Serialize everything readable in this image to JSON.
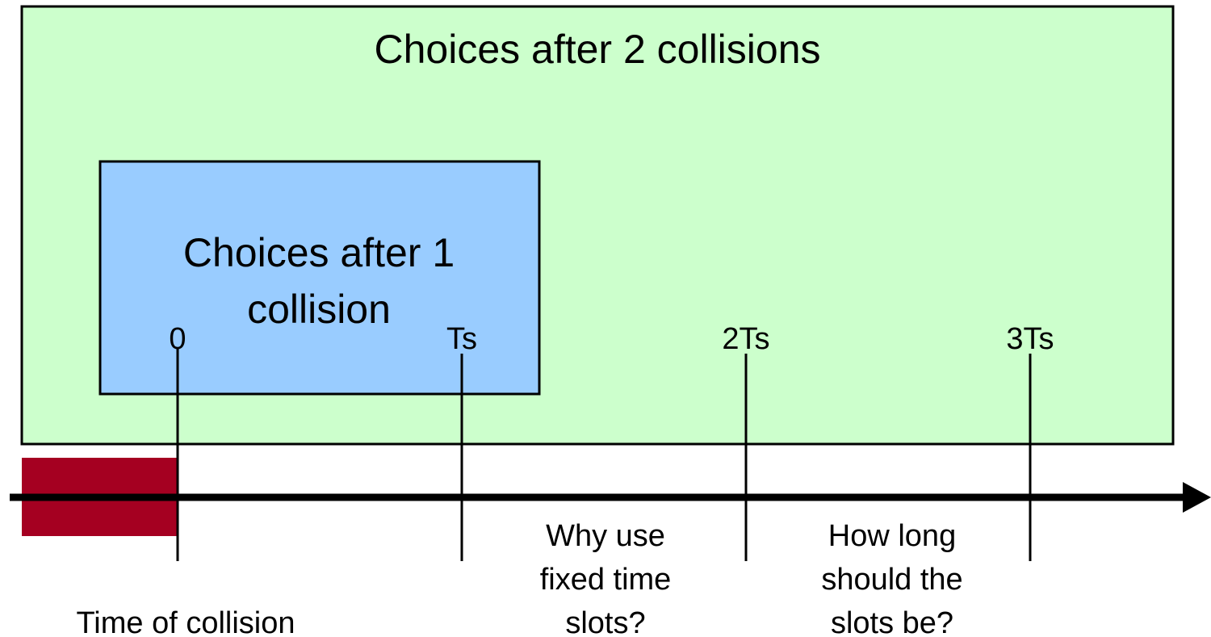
{
  "outer_box": {
    "title": "Choices after 2 collisions"
  },
  "inner_box": {
    "title_lines": [
      "Choices after 1",
      "collision"
    ]
  },
  "ticks": [
    "0",
    "Ts",
    "2Ts",
    "3Ts"
  ],
  "notes": {
    "collision": "Time of collision",
    "why": [
      "Why use",
      "fixed time",
      "slots?"
    ],
    "how": [
      "How long",
      "should the",
      "slots be?"
    ]
  }
}
